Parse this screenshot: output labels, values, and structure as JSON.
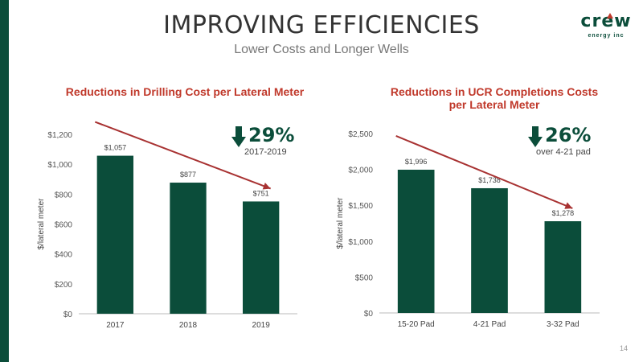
{
  "slide": {
    "title": "IMPROVING EFFICIENCIES",
    "subtitle": "Lower Costs and Longer Wells",
    "page_number": "14",
    "logo_text": "crew",
    "logo_sub": "energy inc"
  },
  "colors": {
    "bar": "#0b4d3a",
    "accent": "#c0392b",
    "arrow": "#a83232"
  },
  "callouts": [
    {
      "value": "29%",
      "note": "2017-2019",
      "icon": "down-arrow-icon"
    },
    {
      "value": "26%",
      "note": "over 4-21 pad",
      "icon": "down-arrow-icon"
    }
  ],
  "chart_data": [
    {
      "type": "bar",
      "title": "Reductions in Drilling Cost per Lateral Meter",
      "ylabel": "$/lateral meter",
      "xlabel": "",
      "categories": [
        "2017",
        "2018",
        "2019"
      ],
      "values": [
        1057,
        877,
        751
      ],
      "data_labels": [
        "$1,057",
        "$877",
        "$751"
      ],
      "ylim": [
        0,
        1200
      ],
      "yticks": [
        0,
        200,
        400,
        600,
        800,
        1000,
        1200
      ],
      "ytick_labels": [
        "$0",
        "$200",
        "$400",
        "$600",
        "$800",
        "$1,000",
        "$1,200"
      ],
      "grid": false,
      "trend_arrow": true
    },
    {
      "type": "bar",
      "title": "Reductions in UCR Completions Costs per Lateral Meter",
      "ylabel": "$/lateral meter",
      "xlabel": "",
      "categories": [
        "15-20 Pad",
        "4-21 Pad",
        "3-32 Pad"
      ],
      "values": [
        1996,
        1738,
        1278
      ],
      "data_labels": [
        "$1,996",
        "$1,738",
        "$1,278"
      ],
      "ylim": [
        0,
        2500
      ],
      "yticks": [
        0,
        500,
        1000,
        1500,
        2000,
        2500
      ],
      "ytick_labels": [
        "$0",
        "$500",
        "$1,000",
        "$1,500",
        "$2,000",
        "$2,500"
      ],
      "grid": false,
      "trend_arrow": true
    }
  ]
}
